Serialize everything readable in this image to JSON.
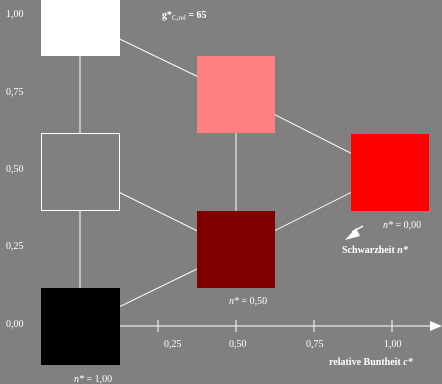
{
  "title": {
    "main": "g*",
    "sub": "C,rel",
    "value": " = 65"
  },
  "y_ticks": [
    "1,00",
    "0,75",
    "0,50",
    "0,25",
    "0,00"
  ],
  "x_ticks": [
    "0,25",
    "0,50",
    "0,75",
    "1,00"
  ],
  "x_axis_label": {
    "text": "relative Buntheit ",
    "var": "c*"
  },
  "blackness_label": {
    "text": "Schwarzheit ",
    "var": "n*"
  },
  "n_labels": [
    {
      "var": "n*",
      "value": " = 0,00"
    },
    {
      "var": "n*",
      "value": " = 0,50"
    },
    {
      "var": "n*",
      "value": " = 1,00"
    }
  ],
  "patches": [
    {
      "name": "white",
      "color": "#ffffff",
      "filled": true
    },
    {
      "name": "light-red",
      "color": "#ff8080",
      "filled": true
    },
    {
      "name": "gray-outline",
      "color": "#808080",
      "filled": false
    },
    {
      "name": "red",
      "color": "#ff0000",
      "filled": true
    },
    {
      "name": "dark-red",
      "color": "#800000",
      "filled": true
    },
    {
      "name": "black",
      "color": "#000000",
      "filled": true
    }
  ]
}
